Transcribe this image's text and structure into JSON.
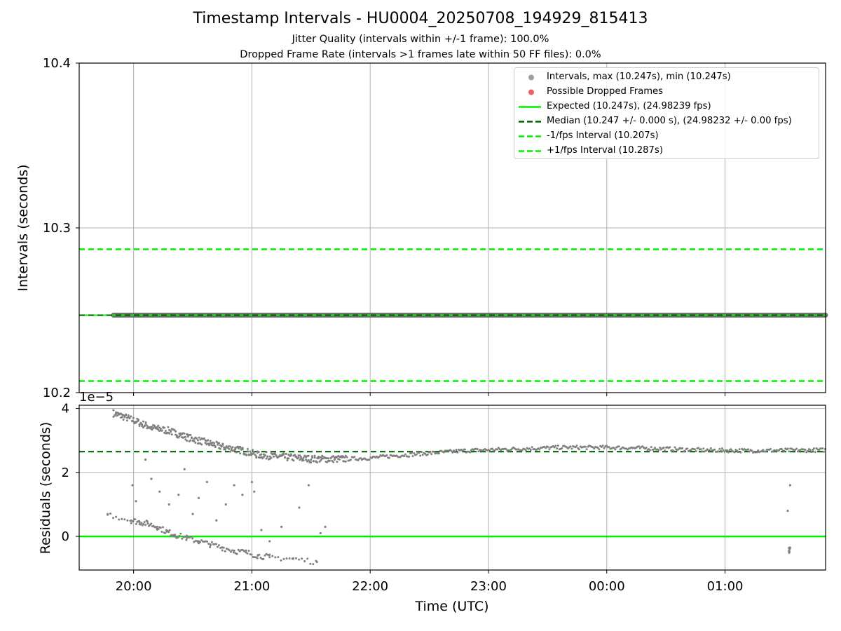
{
  "title": "Timestamp Intervals - HU0004_20250708_194929_815413",
  "subtitle_1": "Jitter Quality (intervals within +/-1 frame): 100.0%",
  "subtitle_2": "Dropped Frame Rate (intervals >1 frames late within 50 FF files): 0.0%",
  "colors": {
    "intervals": "#808080",
    "dropped": "#f06060",
    "expected": "#00ee00",
    "median": "#006400",
    "fps_bounds": "#00ee00",
    "grid": "#b0b0b0"
  },
  "chart_data": [
    {
      "type": "scatter",
      "panel": "intervals",
      "ylabel": "Intervals (seconds)",
      "xlabel": "",
      "ylim": [
        10.2,
        10.4
      ],
      "y_ticks": [
        "10.2",
        "10.3",
        "10.4"
      ],
      "y_tick_values": [
        10.2,
        10.3,
        10.4
      ],
      "x_ticks": [],
      "grid": true,
      "legend_position": "top-right",
      "legend": [
        {
          "kind": "marker",
          "color": "#a0a0a0",
          "label": "Intervals, max (10.247s), min (10.247s)"
        },
        {
          "kind": "marker",
          "color": "#f06060",
          "label": "Possible Dropped Frames"
        },
        {
          "kind": "solid",
          "color": "#00ee00",
          "label": "Expected (10.247s), (24.98239 fps)"
        },
        {
          "kind": "dashed",
          "color": "#006400",
          "label": "Median (10.247 +/- 0.000 s), (24.98232 +/- 0.00 fps)"
        },
        {
          "kind": "dashed",
          "color": "#00ee00",
          "label": "-1/fps Interval (10.207s)"
        },
        {
          "kind": "dashed",
          "color": "#00ee00",
          "label": "+1/fps Interval (10.287s)"
        }
      ],
      "series": [
        {
          "name": "Intervals",
          "x_range_hours": [
            19.83,
            25.85
          ],
          "y": 10.247
        },
        {
          "name": "Expected",
          "y": 10.247
        },
        {
          "name": "Median",
          "y": 10.247
        },
        {
          "name": "-1/fps Interval",
          "y": 10.207
        },
        {
          "name": "+1/fps Interval",
          "y": 10.287
        }
      ]
    },
    {
      "type": "scatter",
      "panel": "residuals",
      "ylabel": "Residuals (seconds)",
      "xlabel": "Time (UTC)",
      "offset_label": "1e−5",
      "ylim": [
        -1.05,
        4.1
      ],
      "y_ticks": [
        "0",
        "2",
        "4"
      ],
      "y_tick_values": [
        0,
        2,
        4
      ],
      "x_ticks": [
        "20:00",
        "21:00",
        "22:00",
        "23:00",
        "00:00",
        "01:00"
      ],
      "x_tick_values_hours": [
        20,
        21,
        22,
        23,
        24,
        25
      ],
      "xlim_hours": [
        19.54,
        25.85
      ],
      "grid": true,
      "median_residual": 2.65,
      "expected_residual": 0,
      "trend_points": [
        [
          19.83,
          3.85
        ],
        [
          19.95,
          3.7
        ],
        [
          20.05,
          3.55
        ],
        [
          20.15,
          3.4
        ],
        [
          20.3,
          3.3
        ],
        [
          20.45,
          3.1
        ],
        [
          20.6,
          2.95
        ],
        [
          20.75,
          2.8
        ],
        [
          20.9,
          2.7
        ],
        [
          21.05,
          2.55
        ],
        [
          21.2,
          2.5
        ],
        [
          21.5,
          2.42
        ],
        [
          21.8,
          2.42
        ],
        [
          22.0,
          2.45
        ],
        [
          22.2,
          2.52
        ],
        [
          22.5,
          2.6
        ],
        [
          22.8,
          2.68
        ],
        [
          23.2,
          2.73
        ],
        [
          23.6,
          2.78
        ],
        [
          24.0,
          2.78
        ],
        [
          24.4,
          2.75
        ],
        [
          24.8,
          2.7
        ],
        [
          25.2,
          2.68
        ],
        [
          25.85,
          2.7
        ]
      ],
      "low_cluster_points": [
        [
          19.78,
          0.7
        ],
        [
          19.98,
          0.5
        ],
        [
          20.05,
          0.45
        ],
        [
          20.12,
          0.4
        ],
        [
          20.2,
          0.3
        ],
        [
          20.28,
          0.15
        ],
        [
          20.35,
          0.05
        ],
        [
          20.45,
          -0.05
        ],
        [
          20.55,
          -0.15
        ],
        [
          20.65,
          -0.25
        ],
        [
          20.75,
          -0.35
        ],
        [
          20.85,
          -0.45
        ],
        [
          20.95,
          -0.5
        ],
        [
          21.05,
          -0.6
        ],
        [
          21.15,
          -0.65
        ],
        [
          21.35,
          -0.7
        ],
        [
          21.55,
          -0.8
        ],
        [
          25.54,
          -0.45
        ],
        [
          25.55,
          -0.35
        ]
      ],
      "outlier_points": [
        [
          19.99,
          1.6
        ],
        [
          20.02,
          1.1
        ],
        [
          20.1,
          2.4
        ],
        [
          20.15,
          1.8
        ],
        [
          20.22,
          1.4
        ],
        [
          20.3,
          1.0
        ],
        [
          20.38,
          1.3
        ],
        [
          20.43,
          2.1
        ],
        [
          20.5,
          0.7
        ],
        [
          20.55,
          1.2
        ],
        [
          20.62,
          1.7
        ],
        [
          20.7,
          0.5
        ],
        [
          20.78,
          1.0
        ],
        [
          20.85,
          1.6
        ],
        [
          20.92,
          1.3
        ],
        [
          21.0,
          1.7
        ],
        [
          21.02,
          1.4
        ],
        [
          21.08,
          0.2
        ],
        [
          21.15,
          -0.15
        ],
        [
          21.25,
          0.3
        ],
        [
          21.4,
          0.9
        ],
        [
          21.48,
          1.6
        ],
        [
          21.58,
          0.1
        ],
        [
          21.62,
          0.3
        ],
        [
          25.53,
          0.8
        ],
        [
          25.55,
          1.6
        ]
      ]
    }
  ]
}
